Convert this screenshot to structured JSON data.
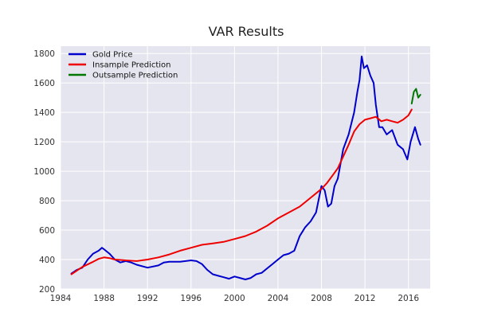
{
  "chart_data": {
    "type": "line",
    "title": "VAR Results",
    "xlabel": "",
    "ylabel": "",
    "xlim": [
      1984,
      2018
    ],
    "ylim": [
      200,
      1850
    ],
    "x_ticks": [
      1984,
      1988,
      1992,
      1996,
      2000,
      2004,
      2008,
      2012,
      2016
    ],
    "y_ticks": [
      200,
      400,
      600,
      800,
      1000,
      1200,
      1400,
      1600,
      1800
    ],
    "grid": true,
    "legend_position": "top-left",
    "series": [
      {
        "name": "Gold Price",
        "color": "#0000cc",
        "x": [
          1985.0,
          1985.5,
          1986.0,
          1986.5,
          1987.0,
          1987.5,
          1987.8,
          1988.0,
          1988.5,
          1989.0,
          1989.5,
          1990.0,
          1990.5,
          1991.0,
          1992.0,
          1993.0,
          1993.5,
          1994.0,
          1995.0,
          1996.0,
          1996.5,
          1997.0,
          1997.5,
          1998.0,
          1998.5,
          1999.0,
          1999.5,
          2000.0,
          2000.5,
          2001.0,
          2001.5,
          2002.0,
          2002.5,
          2003.0,
          2003.5,
          2004.0,
          2004.5,
          2005.0,
          2005.5,
          2006.0,
          2006.5,
          2007.0,
          2007.5,
          2008.0,
          2008.3,
          2008.6,
          2008.9,
          2009.2,
          2009.5,
          2010.0,
          2010.5,
          2011.0,
          2011.3,
          2011.5,
          2011.7,
          2011.9,
          2012.2,
          2012.5,
          2012.8,
          2013.0,
          2013.3,
          2013.6,
          2014.0,
          2014.5,
          2015.0,
          2015.5,
          2015.9,
          2016.2,
          2016.6,
          2016.9,
          2017.1
        ],
        "y": [
          305,
          330,
          345,
          400,
          440,
          460,
          480,
          470,
          440,
          400,
          380,
          390,
          380,
          365,
          345,
          360,
          380,
          385,
          385,
          395,
          390,
          370,
          330,
          300,
          290,
          280,
          270,
          285,
          275,
          265,
          275,
          300,
          310,
          340,
          370,
          400,
          430,
          440,
          460,
          560,
          620,
          660,
          720,
          900,
          870,
          760,
          780,
          900,
          950,
          1150,
          1250,
          1400,
          1540,
          1620,
          1780,
          1700,
          1720,
          1650,
          1600,
          1450,
          1300,
          1300,
          1250,
          1280,
          1180,
          1150,
          1080,
          1200,
          1300,
          1220,
          1180
        ]
      },
      {
        "name": "Insample Prediction",
        "color": "#ee0000",
        "x": [
          1985.0,
          1986.0,
          1987.0,
          1987.5,
          1988.0,
          1988.5,
          1989.0,
          1990.0,
          1991.0,
          1992.0,
          1993.0,
          1994.0,
          1995.0,
          1996.0,
          1997.0,
          1998.0,
          1999.0,
          2000.0,
          2001.0,
          2002.0,
          2003.0,
          2004.0,
          2005.0,
          2006.0,
          2007.0,
          2008.0,
          2008.5,
          2009.0,
          2009.5,
          2010.0,
          2010.5,
          2011.0,
          2011.5,
          2012.0,
          2012.5,
          2013.0,
          2013.5,
          2014.0,
          2014.5,
          2015.0,
          2015.5,
          2016.0,
          2016.3
        ],
        "y": [
          300,
          350,
          385,
          405,
          415,
          410,
          400,
          395,
          390,
          400,
          415,
          435,
          460,
          480,
          500,
          510,
          520,
          540,
          560,
          590,
          630,
          680,
          720,
          760,
          820,
          880,
          920,
          970,
          1020,
          1100,
          1180,
          1270,
          1320,
          1350,
          1360,
          1370,
          1340,
          1350,
          1340,
          1330,
          1350,
          1380,
          1420
        ]
      },
      {
        "name": "Outsample Prediction",
        "color": "#007700",
        "x": [
          2016.3,
          2016.5,
          2016.7,
          2016.9,
          2017.1
        ],
        "y": [
          1460,
          1540,
          1560,
          1500,
          1520
        ]
      }
    ]
  }
}
